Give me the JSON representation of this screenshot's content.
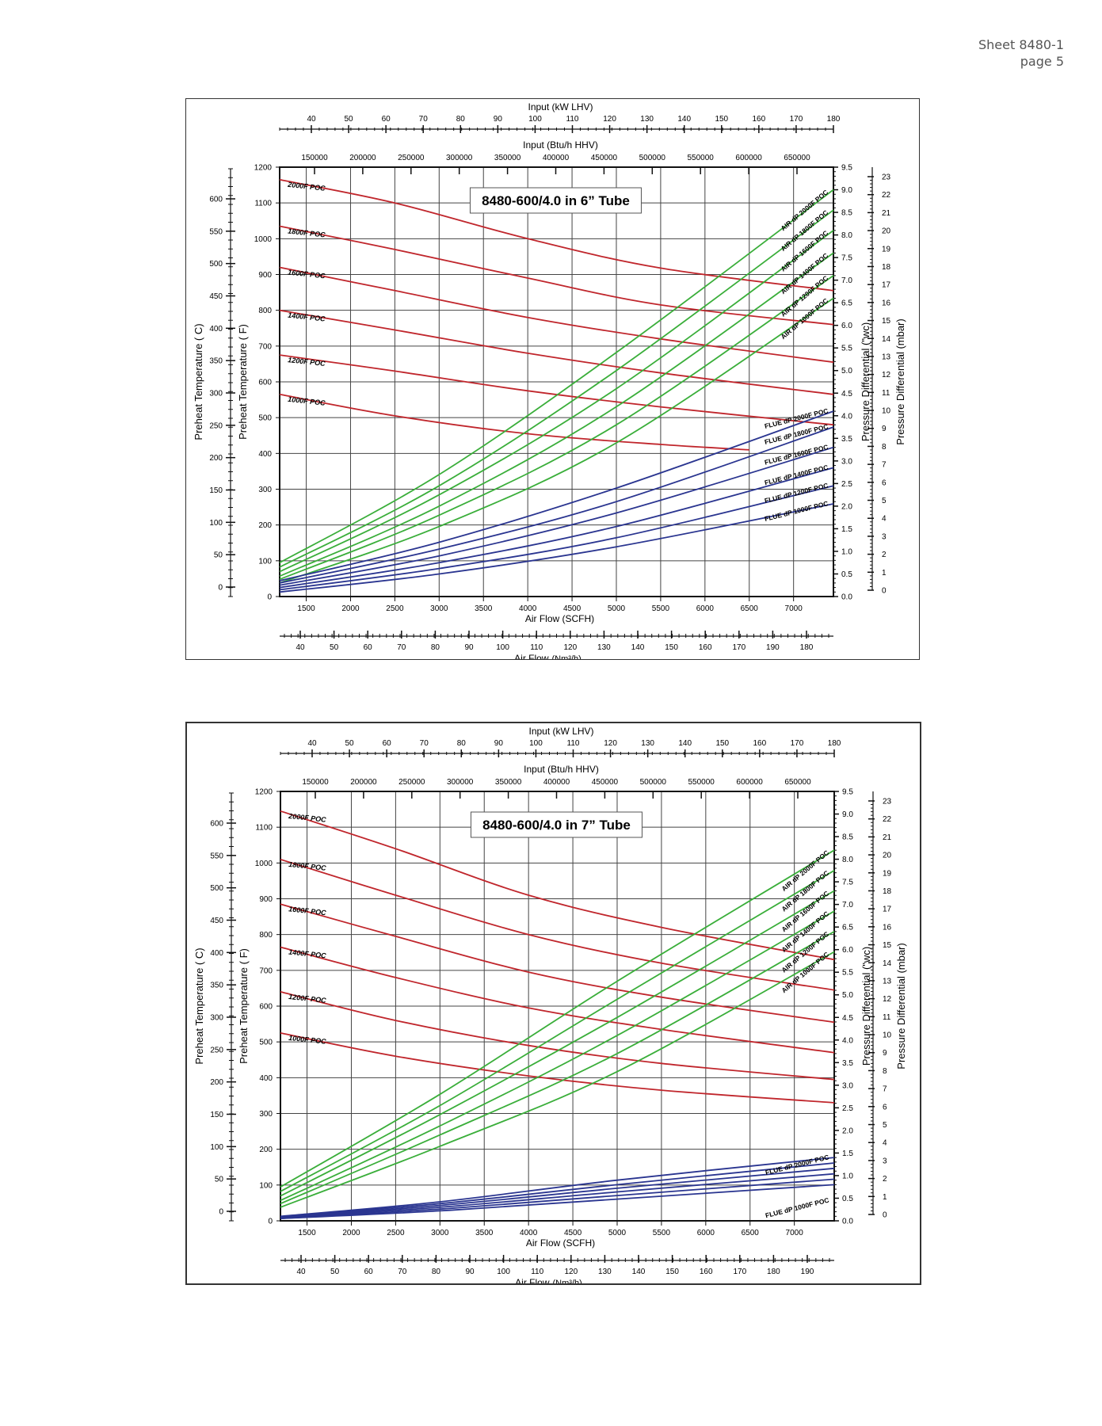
{
  "header": {
    "sheet": "Sheet 8480-1",
    "page": "page 5"
  },
  "axes_labels": {
    "input_kw": "Input (kW LHV)",
    "input_btu": "Input (Btu/h HHV)",
    "preheat_c": "Preheat Temperature ( C)",
    "preheat_f": "Preheat Temperature ( F)",
    "dp_wc": "Pressure Differential (\"wc)",
    "dp_mbar": "Pressure Differential (mbar)",
    "airflow_scfh": "Air Flow (SCFH)",
    "airflow_nm3": "Air Flow",
    "nm3_unit": "(Nm³/h)"
  },
  "colors": {
    "preheat": "#c0262c",
    "air_dp": "#3aae3a",
    "flue_dp": "#2a3590",
    "grid": "#333333"
  },
  "chart_data": [
    {
      "type": "line",
      "title": "8480-600/4.0 in 6” Tube",
      "xlabel": "Air Flow (SCFH)",
      "ylabel": "Preheat Temperature ( F)",
      "y2label": "Pressure Differential (\"wc)",
      "xlim": [
        1200,
        7450
      ],
      "ylim": [
        0,
        1200
      ],
      "y2lim": [
        0,
        9.5
      ],
      "x_ticks": [
        1500,
        2000,
        2500,
        3000,
        3500,
        4000,
        4500,
        5000,
        5500,
        6000,
        6500,
        7000
      ],
      "y_ticks": [
        0,
        100,
        200,
        300,
        400,
        500,
        600,
        700,
        800,
        900,
        1000,
        1100,
        1200
      ],
      "y2_ticks": [
        0.0,
        0.5,
        1.0,
        1.5,
        2.0,
        2.5,
        3.0,
        3.5,
        4.0,
        4.5,
        5.0,
        5.5,
        6.0,
        6.5,
        7.0,
        7.5,
        8.0,
        8.5,
        9.0,
        9.5
      ],
      "top_kw_ticks": [
        40,
        50,
        60,
        70,
        80,
        90,
        100,
        110,
        120,
        130,
        140,
        150,
        160,
        170,
        180
      ],
      "top_btu_ticks": [
        "150000",
        "200000",
        "250000",
        "300000",
        "350000",
        "400000",
        "450000",
        "500000",
        "550000",
        "600000",
        "650000"
      ],
      "c_ticks": [
        0,
        50,
        100,
        150,
        200,
        250,
        300,
        350,
        400,
        450,
        500,
        550,
        600
      ],
      "mbar_ticks": [
        0,
        1,
        2,
        3,
        4,
        5,
        6,
        7,
        8,
        9,
        10,
        11,
        12,
        13,
        14,
        15,
        16,
        17,
        18,
        19,
        20,
        21,
        22,
        23
      ],
      "nm3_ticks": [
        40,
        50,
        60,
        70,
        80,
        90,
        100,
        110,
        120,
        130,
        140,
        150,
        160,
        170,
        190,
        180
      ],
      "preheat_series": [
        {
          "name": "2000F POC",
          "x": [
            1200,
            2500,
            4000,
            5500,
            7450
          ],
          "y": [
            1165,
            1100,
            1000,
            918,
            855
          ]
        },
        {
          "name": "1800F POC",
          "x": [
            1200,
            2500,
            4000,
            5500,
            7450
          ],
          "y": [
            1035,
            970,
            890,
            815,
            760
          ]
        },
        {
          "name": "1600F POC",
          "x": [
            1200,
            2500,
            4000,
            5500,
            7450
          ],
          "y": [
            920,
            855,
            780,
            720,
            655
          ]
        },
        {
          "name": "1400F POC",
          "x": [
            1200,
            2500,
            4000,
            5500,
            7450
          ],
          "y": [
            800,
            745,
            680,
            625,
            565
          ]
        },
        {
          "name": "1200F POC",
          "x": [
            1200,
            2500,
            4000,
            5500,
            7450
          ],
          "y": [
            675,
            630,
            575,
            530,
            480
          ]
        },
        {
          "name": "1000F POC",
          "x": [
            1200,
            2500,
            4000,
            5500,
            6500
          ],
          "y": [
            565,
            505,
            455,
            425,
            410
          ]
        }
      ],
      "air_dp_series": [
        {
          "name": "AIR dP 2000F POC",
          "x": [
            1200,
            3000,
            5000,
            7450
          ],
          "y": [
            0.75,
            2.7,
            5.4,
            9.0
          ]
        },
        {
          "name": "AIR dP 1800F POC",
          "x": [
            1200,
            3000,
            5000,
            7450
          ],
          "y": [
            0.65,
            2.45,
            5.0,
            8.55
          ]
        },
        {
          "name": "AIR dP 1600F POC",
          "x": [
            1200,
            3000,
            5000,
            7450
          ],
          "y": [
            0.55,
            2.25,
            4.6,
            8.1
          ]
        },
        {
          "name": "AIR dP 1400F POC",
          "x": [
            1200,
            3000,
            5000,
            7450
          ],
          "y": [
            0.45,
            2.0,
            4.2,
            7.6
          ]
        },
        {
          "name": "AIR dP 1200F POC",
          "x": [
            1200,
            3000,
            5000,
            7450
          ],
          "y": [
            0.38,
            1.8,
            3.8,
            7.1
          ]
        },
        {
          "name": "AIR dP 1000F POC",
          "x": [
            1200,
            3000,
            5000,
            7450
          ],
          "y": [
            0.3,
            1.55,
            3.4,
            6.6
          ]
        }
      ],
      "flue_dp_series": [
        {
          "name": "FLUE dP 2000F POC",
          "x": [
            1200,
            3000,
            5000,
            7450
          ],
          "y": [
            0.35,
            1.2,
            2.4,
            4.1
          ]
        },
        {
          "name": "FLUE dP 1800F POC",
          "x": [
            1200,
            3000,
            5000,
            7450
          ],
          "y": [
            0.3,
            1.05,
            2.1,
            3.75
          ]
        },
        {
          "name": "FLUE dP 1600F POC",
          "x": [
            1200,
            3000,
            5000,
            7450
          ],
          "y": [
            0.25,
            0.9,
            1.85,
            3.3
          ]
        },
        {
          "name": "FLUE dP 1400F POC",
          "x": [
            1200,
            3000,
            5000,
            7450
          ],
          "y": [
            0.2,
            0.75,
            1.55,
            2.85
          ]
        },
        {
          "name": "FLUE dP 1200F POC",
          "x": [
            1200,
            3000,
            5000,
            7450
          ],
          "y": [
            0.15,
            0.62,
            1.3,
            2.45
          ]
        },
        {
          "name": "FLUE dP 1000F POC",
          "x": [
            1200,
            3000,
            5000,
            7450
          ],
          "y": [
            0.1,
            0.5,
            1.1,
            2.05
          ]
        }
      ]
    },
    {
      "type": "line",
      "title": "8480-600/4.0 in 7” Tube",
      "xlabel": "Air Flow (SCFH)",
      "ylabel": "Preheat Temperature ( F)",
      "y2label": "Pressure Differential (\"wc)",
      "xlim": [
        1200,
        7450
      ],
      "ylim": [
        0,
        1200
      ],
      "y2lim": [
        0,
        9.5
      ],
      "x_ticks": [
        1500,
        2000,
        2500,
        3000,
        3500,
        4000,
        4500,
        5000,
        5500,
        6000,
        6500,
        7000
      ],
      "y_ticks": [
        0,
        100,
        200,
        300,
        400,
        500,
        600,
        700,
        800,
        900,
        1000,
        1100,
        1200
      ],
      "y2_ticks": [
        0.0,
        0.5,
        1.0,
        1.5,
        2.0,
        2.5,
        3.0,
        3.5,
        4.0,
        4.5,
        5.0,
        5.5,
        6.0,
        6.5,
        7.0,
        7.5,
        8.0,
        8.5,
        9.0,
        9.5
      ],
      "top_kw_ticks": [
        40,
        50,
        60,
        70,
        80,
        90,
        100,
        110,
        120,
        130,
        140,
        150,
        160,
        170,
        180
      ],
      "top_btu_ticks": [
        "150000",
        "200000",
        "250000",
        "300000",
        "350000",
        "400000",
        "450000",
        "500000",
        "550000",
        "600000",
        "650000"
      ],
      "c_ticks": [
        0,
        50,
        100,
        150,
        200,
        250,
        300,
        350,
        400,
        450,
        500,
        550,
        600
      ],
      "mbar_ticks": [
        0,
        1,
        2,
        3,
        4,
        5,
        6,
        7,
        8,
        9,
        10,
        11,
        12,
        13,
        14,
        15,
        16,
        17,
        18,
        19,
        20,
        21,
        22,
        23
      ],
      "nm3_ticks": [
        40,
        50,
        60,
        70,
        80,
        90,
        100,
        110,
        120,
        130,
        140,
        150,
        160,
        170,
        180,
        190
      ],
      "preheat_series": [
        {
          "name": "2000F POC",
          "x": [
            1200,
            2500,
            4000,
            5500,
            7450
          ],
          "y": [
            1145,
            1040,
            910,
            820,
            730
          ]
        },
        {
          "name": "1800F POC",
          "x": [
            1200,
            2500,
            4000,
            5500,
            7450
          ],
          "y": [
            1010,
            910,
            800,
            720,
            645
          ]
        },
        {
          "name": "1600F POC",
          "x": [
            1200,
            2500,
            4000,
            5500,
            7450
          ],
          "y": [
            885,
            795,
            695,
            625,
            555
          ]
        },
        {
          "name": "1400F POC",
          "x": [
            1200,
            2500,
            4000,
            5500,
            7450
          ],
          "y": [
            765,
            680,
            595,
            535,
            470
          ]
        },
        {
          "name": "1200F POC",
          "x": [
            1200,
            2500,
            4000,
            5500,
            7450
          ],
          "y": [
            640,
            560,
            490,
            440,
            395
          ]
        },
        {
          "name": "1000F POC",
          "x": [
            1200,
            2500,
            4000,
            5500,
            7450
          ],
          "y": [
            525,
            460,
            405,
            365,
            330
          ]
        }
      ],
      "air_dp_series": [
        {
          "name": "AIR dP 2000F POC",
          "x": [
            1200,
            3000,
            5000,
            7450
          ],
          "y": [
            0.75,
            2.8,
            5.3,
            8.2
          ]
        },
        {
          "name": "AIR dP 1800F POC",
          "x": [
            1200,
            3000,
            5000,
            7450
          ],
          "y": [
            0.65,
            2.55,
            4.9,
            7.75
          ]
        },
        {
          "name": "AIR dP 1600F POC",
          "x": [
            1200,
            3000,
            5000,
            7450
          ],
          "y": [
            0.55,
            2.35,
            4.5,
            7.3
          ]
        },
        {
          "name": "AIR dP 1400F POC",
          "x": [
            1200,
            3000,
            5000,
            7450
          ],
          "y": [
            0.45,
            2.1,
            4.1,
            6.85
          ]
        },
        {
          "name": "AIR dP 1200F POC",
          "x": [
            1200,
            3000,
            5000,
            7450
          ],
          "y": [
            0.38,
            1.9,
            3.7,
            6.4
          ]
        },
        {
          "name": "AIR dP 1000F POC",
          "x": [
            1200,
            3000,
            5000,
            7450
          ],
          "y": [
            0.3,
            1.65,
            3.3,
            5.95
          ]
        }
      ],
      "flue_dp_series": [
        {
          "name": "FLUE dP 2000F POC",
          "x": [
            1200,
            3000,
            5000,
            7450
          ],
          "y": [
            0.1,
            0.42,
            0.9,
            1.4
          ]
        },
        {
          "name": "FLUE dP 1800F POC",
          "x": [
            1200,
            3000,
            5000,
            7450
          ],
          "y": [
            0.09,
            0.38,
            0.8,
            1.28
          ]
        },
        {
          "name": "FLUE dP 1600F POC",
          "x": [
            1200,
            3000,
            5000,
            7450
          ],
          "y": [
            0.08,
            0.34,
            0.72,
            1.16
          ]
        },
        {
          "name": "FLUE dP 1400F POC",
          "x": [
            1200,
            3000,
            5000,
            7450
          ],
          "y": [
            0.07,
            0.3,
            0.64,
            1.04
          ]
        },
        {
          "name": "FLUE dP 1200F POC",
          "x": [
            1200,
            3000,
            5000,
            7450
          ],
          "y": [
            0.06,
            0.26,
            0.56,
            0.92
          ]
        },
        {
          "name": "FLUE dP 1000F POC",
          "x": [
            1200,
            3000,
            5000,
            7450
          ],
          "y": [
            0.05,
            0.22,
            0.48,
            0.8
          ]
        }
      ]
    }
  ]
}
